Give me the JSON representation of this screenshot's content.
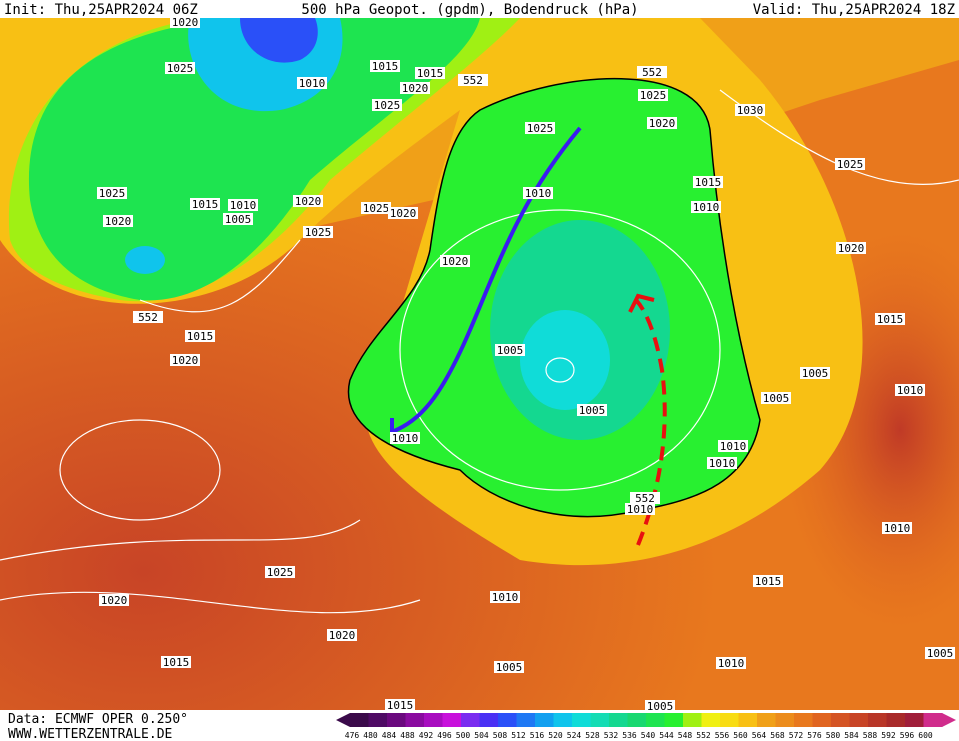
{
  "header": {
    "init": "Init: Thu,25APR2024 06Z",
    "title": "500 hPa Geopot. (gpdm), Bodendruck (hPa)",
    "valid": "Valid: Thu,25APR2024 18Z"
  },
  "footer": {
    "data_source": "Data: ECMWF OPER 0.250°",
    "website": "WWW.WETTERZENTRALE.DE"
  },
  "colorbar": {
    "labels": [
      476,
      480,
      484,
      488,
      492,
      496,
      500,
      504,
      508,
      512,
      516,
      520,
      524,
      528,
      532,
      536,
      540,
      544,
      548,
      552,
      556,
      560,
      564,
      568,
      572,
      576,
      580,
      584,
      588,
      592,
      596,
      600
    ],
    "colors": [
      "#3a0a4a",
      "#4e0a64",
      "#6a087e",
      "#8a0aa0",
      "#a80cc0",
      "#c810dc",
      "#7a2cf0",
      "#4a30f4",
      "#2a50f8",
      "#1e78f4",
      "#12a0f0",
      "#10c4ec",
      "#10dcd8",
      "#14dcb4",
      "#14d890",
      "#18d870",
      "#1ee450",
      "#28f030",
      "#a0f014",
      "#f0f014",
      "#f8dc14",
      "#f8c014",
      "#f0a018",
      "#ec8c1c",
      "#e8781e",
      "#e06420",
      "#d45424",
      "#c84426",
      "#b83628",
      "#a82a2a",
      "#a01e3a",
      "#d02c8c"
    ]
  },
  "pressure_labels": [
    1020,
    1025,
    1010,
    1015,
    1015,
    1020,
    1025,
    552,
    552,
    1025,
    1030,
    1025,
    1020,
    1025,
    1015,
    1010,
    1010,
    1025,
    1015,
    1010,
    1005,
    1020,
    1020,
    1025,
    1020,
    1025,
    1020,
    1020,
    552,
    1015,
    1020,
    1015,
    1005,
    1005,
    1010,
    1005,
    1005,
    1010,
    1010,
    1010,
    1010,
    552,
    1010,
    1025,
    1015,
    1020,
    1010,
    1020,
    1015,
    1005,
    1010,
    1005,
    1015,
    1005
  ]
}
